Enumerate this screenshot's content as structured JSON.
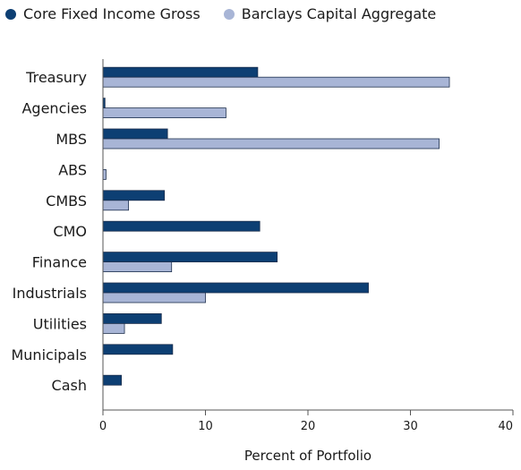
{
  "chart_data": {
    "type": "bar",
    "orientation": "horizontal",
    "categories": [
      "Treasury",
      "Agencies",
      "MBS",
      "ABS",
      "CMBS",
      "CMO",
      "Finance",
      "Industrials",
      "Utilities",
      "Municipals",
      "Cash"
    ],
    "series": [
      {
        "name": "Core Fixed Income Gross",
        "color": "#0d3f73",
        "values": [
          15.1,
          0.2,
          6.3,
          0.0,
          6.0,
          15.3,
          17.0,
          25.9,
          5.7,
          6.8,
          1.8
        ]
      },
      {
        "name": "Barclays Capital Aggregate",
        "color": "#a8b5d6",
        "values": [
          33.8,
          12.0,
          32.8,
          0.3,
          2.5,
          0.0,
          6.7,
          10.0,
          2.1,
          0.0,
          0.0
        ]
      }
    ],
    "xlabel": "Percent of Portfolio",
    "xlim": [
      0,
      40
    ],
    "xticks": [
      "0",
      "10",
      "20",
      "30",
      "40"
    ],
    "legend_position": "top-left"
  }
}
